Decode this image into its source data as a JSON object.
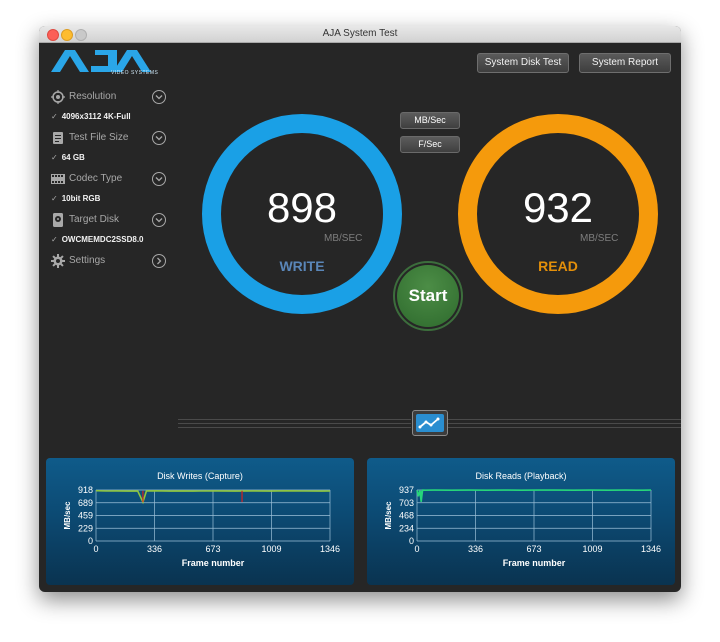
{
  "window": {
    "title": "AJA System Test"
  },
  "logo": {
    "brand": "AJA",
    "tagline": "VIDEO SYSTEMS"
  },
  "toolbar": {
    "disk_test": "System Disk Test",
    "report": "System Report"
  },
  "sidebar": {
    "items": [
      {
        "label": "Resolution",
        "value": "4096x3112 4K-Full",
        "icon": "resolution-icon"
      },
      {
        "label": "Test File Size",
        "value": "64 GB",
        "icon": "file-size-icon"
      },
      {
        "label": "Codec Type",
        "value": "10bit RGB",
        "icon": "codec-icon"
      },
      {
        "label": "Target Disk",
        "value": "OWCMEMDC2SSD8.0",
        "icon": "disk-icon"
      },
      {
        "label": "Settings",
        "value": "",
        "icon": "gear-icon"
      }
    ]
  },
  "units": {
    "mbsec": "MB/Sec",
    "fsec": "F/Sec"
  },
  "write": {
    "value": "898",
    "unit": "MB/SEC",
    "label": "WRITE",
    "color": "#1aa0e6"
  },
  "read": {
    "value": "932",
    "unit": "MB/SEC",
    "label": "READ",
    "color": "#f59a0c"
  },
  "start_label": "Start",
  "charts": [
    {
      "type": "line",
      "title": "Disk Writes (Capture)",
      "xlabel": "Frame number",
      "ylabel": "MB/sec",
      "yticks": [
        "918",
        "689",
        "459",
        "229",
        "0"
      ],
      "xticks": [
        "0",
        "336",
        "673",
        "1009",
        "1346"
      ],
      "line_color": "#8ec63f",
      "spike_color": "#d62020"
    },
    {
      "type": "line",
      "title": "Disk Reads (Playback)",
      "xlabel": "Frame number",
      "ylabel": "MB/sec",
      "yticks": [
        "937",
        "703",
        "468",
        "234",
        "0"
      ],
      "xticks": [
        "0",
        "336",
        "673",
        "1009",
        "1346"
      ],
      "line_color": "#27d67a",
      "spike_color": "#27d67a"
    }
  ],
  "chart_data": [
    {
      "type": "line",
      "title": "Disk Writes (Capture)",
      "xlabel": "Frame number",
      "ylabel": "MB/sec",
      "xlim": [
        0,
        1346
      ],
      "ylim": [
        0,
        918
      ],
      "x": [
        0,
        60,
        120,
        180,
        240,
        270,
        290,
        340,
        420,
        500,
        560,
        600,
        700,
        800,
        900,
        1000,
        1100,
        1200,
        1300,
        1346
      ],
      "series": [
        {
          "values": [
            905,
            900,
            902,
            898,
            900,
            700,
            900,
            903,
            898,
            901,
            899,
            900,
            902,
            898,
            901,
            899,
            903,
            900,
            898,
            900
          ]
        }
      ]
    },
    {
      "type": "line",
      "title": "Disk Reads (Playback)",
      "xlabel": "Frame number",
      "ylabel": "MB/sec",
      "xlim": [
        0,
        1346
      ],
      "ylim": [
        0,
        937
      ],
      "x": [
        0,
        8,
        16,
        24,
        32,
        48,
        100,
        200,
        300,
        400,
        500,
        600,
        700,
        800,
        900,
        1000,
        1100,
        1200,
        1300,
        1346
      ],
      "series": [
        {
          "values": [
            930,
            820,
            935,
            720,
            935,
            934,
            936,
            934,
            935,
            933,
            936,
            934,
            935,
            936,
            934,
            935,
            933,
            935,
            934,
            935
          ]
        }
      ]
    }
  ]
}
